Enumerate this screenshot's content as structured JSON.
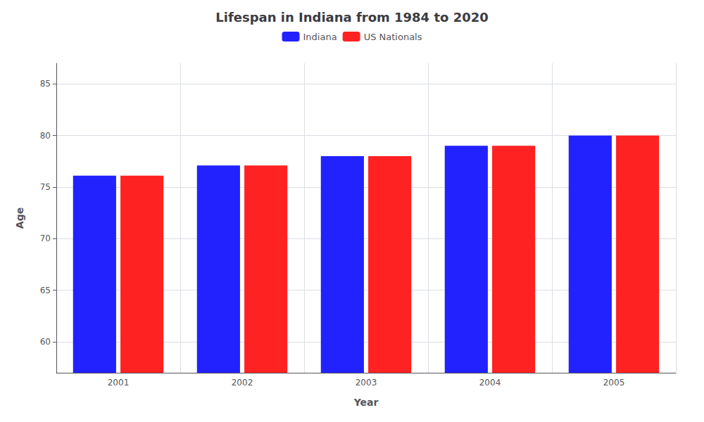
{
  "chart_data": {
    "type": "bar",
    "title": "Lifespan in Indiana from 1984 to 2020",
    "xlabel": "Year",
    "ylabel": "Age",
    "categories": [
      "2001",
      "2002",
      "2003",
      "2004",
      "2005"
    ],
    "series": [
      {
        "name": "Indiana",
        "color": "#2222ff",
        "values": [
          76.1,
          77.1,
          78.0,
          79.0,
          80.0
        ]
      },
      {
        "name": "US Nationals",
        "color": "#ff2222",
        "values": [
          76.1,
          77.1,
          78.0,
          79.0,
          80.0
        ]
      }
    ],
    "ylim": [
      57,
      87
    ],
    "yticks": [
      60,
      65,
      70,
      75,
      80,
      85
    ],
    "grid": true,
    "legend": "upper center"
  }
}
